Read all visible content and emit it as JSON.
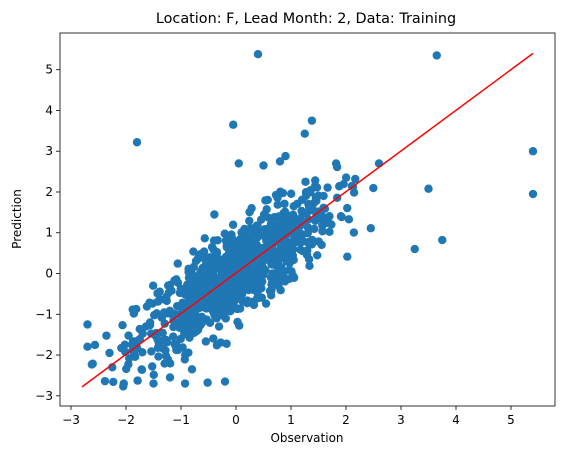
{
  "chart_data": {
    "type": "scatter",
    "title": "Location: F, Lead Month: 2, Data: Training",
    "xlabel": "Observation",
    "ylabel": "Prediction",
    "xlim": [
      -3.2,
      5.8
    ],
    "ylim": [
      -3.25,
      5.9
    ],
    "xticks": [
      -3,
      -2,
      -1,
      0,
      1,
      2,
      3,
      4,
      5
    ],
    "yticks": [
      -3,
      -2,
      -1,
      0,
      1,
      2,
      3,
      4,
      5
    ],
    "grid": false,
    "colors": {
      "points": "#1f77b4",
      "fit_line": "#ff0000",
      "axes": "#000000"
    },
    "fit_line": {
      "x": [
        -2.8,
        5.4
      ],
      "y": [
        -2.78,
        5.4
      ]
    },
    "outlier_points": {
      "x": [
        0.4,
        3.65,
        -1.8,
        -0.05,
        5.4,
        5.4,
        1.25,
        1.38,
        3.75,
        3.25,
        3.5,
        0.05,
        0.5,
        0.8,
        0.9,
        -2.05,
        -1.2,
        -2.25,
        -2.3,
        -0.2,
        -0.8,
        -1.5,
        -2.7
      ],
      "y": [
        5.38,
        5.35,
        3.22,
        3.65,
        3.0,
        1.95,
        3.43,
        3.75,
        0.82,
        0.6,
        2.08,
        2.7,
        2.65,
        2.75,
        2.88,
        -2.77,
        -2.55,
        -2.3,
        -1.95,
        -2.65,
        -2.35,
        -2.7,
        -1.25
      ]
    },
    "cloud_seed": 12345,
    "cloud_count": 900,
    "cloud_model": {
      "slope": 0.9,
      "noise_sd": 0.55,
      "x_sd": 0.9
    }
  }
}
